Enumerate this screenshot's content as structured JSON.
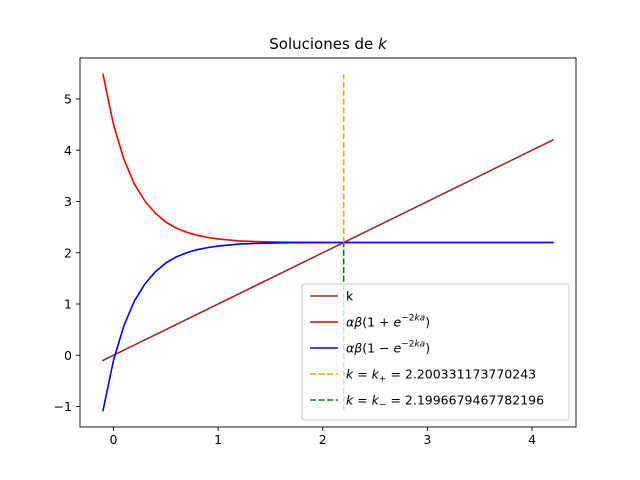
{
  "chart_data": {
    "type": "line",
    "title": "Soluciones de k",
    "xlabel": "",
    "ylabel": "",
    "xlim": [
      -0.32,
      4.42
    ],
    "ylim": [
      -1.4,
      5.8
    ],
    "x_ticks": [
      {
        "value": 0,
        "label": "0"
      },
      {
        "value": 1,
        "label": "1"
      },
      {
        "value": 2,
        "label": "2"
      },
      {
        "value": 3,
        "label": "3"
      },
      {
        "value": 4,
        "label": "4"
      }
    ],
    "y_ticks": [
      {
        "value": -1,
        "label": "−1"
      },
      {
        "value": 0,
        "label": "0"
      },
      {
        "value": 1,
        "label": "1"
      },
      {
        "value": 2,
        "label": "2"
      },
      {
        "value": 3,
        "label": "3"
      },
      {
        "value": 4,
        "label": "4"
      },
      {
        "value": 5,
        "label": "5"
      }
    ],
    "grid": false,
    "legend_position": "lower right",
    "series": [
      {
        "name": "k",
        "color": "#a52a2a",
        "dash": "solid",
        "x": [
          -0.1,
          4.2
        ],
        "y": [
          -0.1,
          4.2
        ]
      },
      {
        "name": "αβ(1 + e^(−2ka))",
        "color": "#ff0000",
        "dash": "solid",
        "x": [
          -0.1,
          0.0,
          0.1,
          0.2,
          0.3,
          0.4,
          0.5,
          0.6,
          0.7,
          0.8,
          0.9,
          1.0,
          1.2,
          1.4,
          1.6,
          2.0,
          2.5,
          3.0,
          3.5,
          4.2
        ],
        "y": [
          5.48,
          4.5,
          3.82,
          3.34,
          3.01,
          2.77,
          2.6,
          2.48,
          2.4,
          2.34,
          2.3,
          2.27,
          2.23,
          2.215,
          2.207,
          2.201,
          2.2,
          2.2,
          2.2,
          2.2
        ]
      },
      {
        "name": "αβ(1 − e^(−2ka))",
        "color": "#0000ff",
        "dash": "solid",
        "x": [
          -0.1,
          0.0,
          0.1,
          0.2,
          0.3,
          0.4,
          0.5,
          0.6,
          0.7,
          0.8,
          0.9,
          1.0,
          1.2,
          1.4,
          1.6,
          2.0,
          2.5,
          3.0,
          3.5,
          4.2
        ],
        "y": [
          -1.08,
          -0.1,
          0.58,
          1.06,
          1.39,
          1.63,
          1.8,
          1.92,
          2.0,
          2.06,
          2.1,
          2.13,
          2.17,
          2.185,
          2.193,
          2.199,
          2.2,
          2.2,
          2.2,
          2.2
        ]
      },
      {
        "name": "k = k₊ = 2.200331173770243",
        "color": "#ffa500",
        "dash": "dashed",
        "x": [
          2.200331173770243,
          2.200331173770243
        ],
        "y": [
          2.2,
          5.48
        ]
      },
      {
        "name": "k = k₋ = 2.1996679467782196",
        "color": "#008000",
        "dash": "dashed",
        "x": [
          2.1996679467782196,
          2.1996679467782196
        ],
        "y": [
          -1.08,
          2.2
        ]
      }
    ]
  }
}
